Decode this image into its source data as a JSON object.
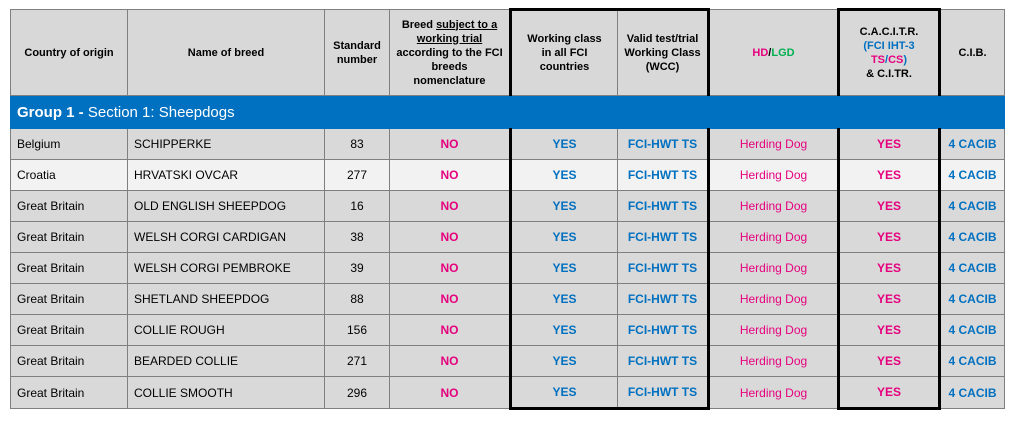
{
  "header": {
    "country": "Country of origin",
    "breed": "Name of breed",
    "standard_line1": "Standard",
    "standard_line2": "number",
    "trial_line1": "Breed ",
    "trial_underline1": "subject to a",
    "trial_underline2": "working trial",
    "trial_line3": "according to the FCI",
    "trial_line4": "breeds nomenclature",
    "working_line1": "Working class",
    "working_line2": "in all FCI countries",
    "valid_line1": "Valid test/trial",
    "valid_line2": "Working Class",
    "valid_line3": "(WCC)",
    "hd": "HD",
    "slash": "/",
    "lgd": "LGD",
    "cacitr_line1": "C.A.C.I.T.R.",
    "cacitr_open": "(",
    "cacitr_fci": "FCI IHT-3 ",
    "cacitr_ts": "TS",
    "cacitr_slash": "/",
    "cacitr_cs": "CS",
    "cacitr_close": ")",
    "cacitr_line3": "& C.I.TR.",
    "cib": "C.I.B."
  },
  "group": {
    "bold": "Group 1 - ",
    "rest": "Section 1: Sheepdogs"
  },
  "rows": [
    {
      "country": "Belgium",
      "breed": "SCHIPPERKE",
      "standard": "83",
      "trial": "NO",
      "working": "YES",
      "valid": "FCI-HWT TS",
      "hdlgd": "Herding Dog",
      "cacitr": "YES",
      "cib": "4 CACIB"
    },
    {
      "country": "Croatia",
      "breed": "HRVATSKI OVCAR",
      "standard": "277",
      "trial": "NO",
      "working": "YES",
      "valid": "FCI-HWT TS",
      "hdlgd": "Herding Dog",
      "cacitr": "YES",
      "cib": "4 CACIB"
    },
    {
      "country": "Great Britain",
      "breed": "OLD ENGLISH SHEEPDOG",
      "standard": "16",
      "trial": "NO",
      "working": "YES",
      "valid": "FCI-HWT TS",
      "hdlgd": "Herding Dog",
      "cacitr": "YES",
      "cib": "4 CACIB"
    },
    {
      "country": "Great Britain",
      "breed": "WELSH CORGI CARDIGAN",
      "standard": "38",
      "trial": "NO",
      "working": "YES",
      "valid": "FCI-HWT TS",
      "hdlgd": "Herding Dog",
      "cacitr": "YES",
      "cib": "4 CACIB"
    },
    {
      "country": "Great Britain",
      "breed": "WELSH CORGI PEMBROKE",
      "standard": "39",
      "trial": "NO",
      "working": "YES",
      "valid": "FCI-HWT TS",
      "hdlgd": "Herding Dog",
      "cacitr": "YES",
      "cib": "4 CACIB"
    },
    {
      "country": "Great Britain",
      "breed": "SHETLAND SHEEPDOG",
      "standard": "88",
      "trial": "NO",
      "working": "YES",
      "valid": "FCI-HWT TS",
      "hdlgd": "Herding Dog",
      "cacitr": "YES",
      "cib": "4 CACIB"
    },
    {
      "country": "Great Britain",
      "breed": "COLLIE ROUGH",
      "standard": "156",
      "trial": "NO",
      "working": "YES",
      "valid": "FCI-HWT TS",
      "hdlgd": "Herding Dog",
      "cacitr": "YES",
      "cib": "4 CACIB"
    },
    {
      "country": "Great Britain",
      "breed": "BEARDED COLLIE",
      "standard": "271",
      "trial": "NO",
      "working": "YES",
      "valid": "FCI-HWT TS",
      "hdlgd": "Herding Dog",
      "cacitr": "YES",
      "cib": "4 CACIB"
    },
    {
      "country": "Great Britain",
      "breed": "COLLIE SMOOTH",
      "standard": "296",
      "trial": "NO",
      "working": "YES",
      "valid": "FCI-HWT TS",
      "hdlgd": "Herding Dog",
      "cacitr": "YES",
      "cib": "4 CACIB"
    }
  ],
  "colors": {
    "group_bg": "#0070c0",
    "pink": "#e6007e",
    "blue": "#0070c0",
    "green": "#00b050",
    "header_bg": "#d8d8d8"
  }
}
